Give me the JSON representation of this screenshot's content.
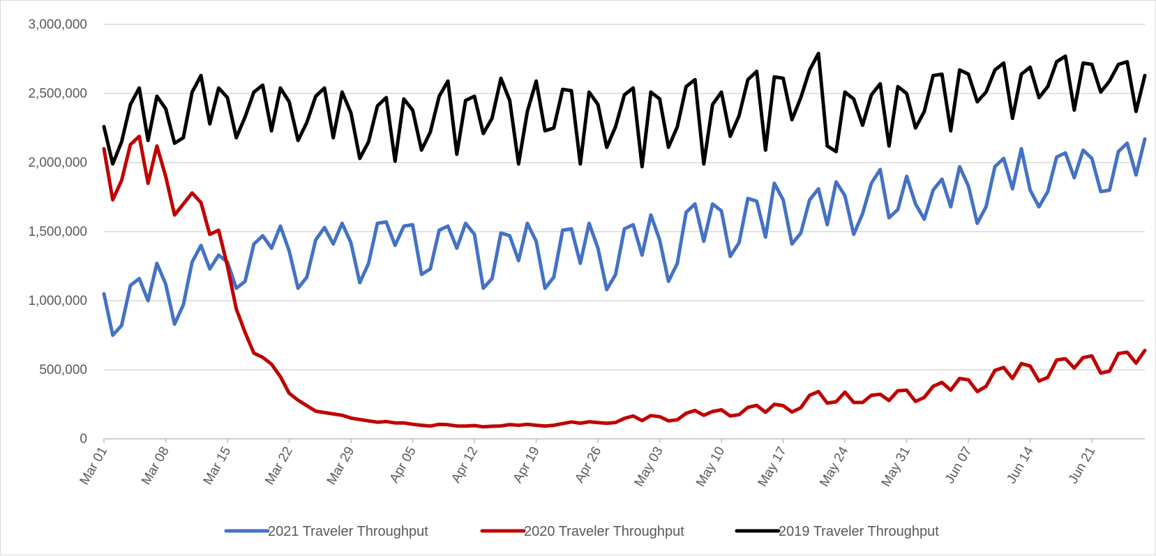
{
  "chart_data": {
    "type": "line",
    "title": "",
    "xlabel": "",
    "ylabel": "",
    "ylim": [
      0,
      3000000
    ],
    "y_ticks": [
      0,
      500000,
      1000000,
      1500000,
      2000000,
      2500000,
      3000000
    ],
    "y_tick_labels": [
      "0",
      "500,000",
      "1,000,000",
      "1,500,000",
      "2,000,000",
      "2,500,000",
      "3,000,000"
    ],
    "x_start": "Mar 01",
    "x_end": "Jun 27",
    "x_tick_labels": [
      "Mar 01",
      "Mar 08",
      "Mar 15",
      "Mar 22",
      "Mar 29",
      "Apr 05",
      "Apr 12",
      "Apr 19",
      "Apr 26",
      "May 03",
      "May 10",
      "May 17",
      "May 24",
      "May 31",
      "Jun 07",
      "Jun 14",
      "Jun 21"
    ],
    "grid": "horizontal",
    "legend_position": "bottom",
    "series": [
      {
        "name": "2021 Traveler Throughput",
        "color": "#4472C4",
        "values": [
          1050000,
          750000,
          820000,
          1110000,
          1160000,
          1000000,
          1270000,
          1120000,
          830000,
          970000,
          1280000,
          1400000,
          1230000,
          1330000,
          1280000,
          1090000,
          1140000,
          1410000,
          1470000,
          1380000,
          1540000,
          1360000,
          1090000,
          1170000,
          1440000,
          1530000,
          1410000,
          1560000,
          1420000,
          1130000,
          1270000,
          1560000,
          1570000,
          1400000,
          1540000,
          1550000,
          1190000,
          1230000,
          1510000,
          1540000,
          1380000,
          1560000,
          1480000,
          1090000,
          1160000,
          1490000,
          1470000,
          1290000,
          1560000,
          1430000,
          1090000,
          1170000,
          1510000,
          1520000,
          1270000,
          1560000,
          1380000,
          1080000,
          1190000,
          1520000,
          1550000,
          1330000,
          1620000,
          1440000,
          1140000,
          1270000,
          1640000,
          1700000,
          1430000,
          1700000,
          1650000,
          1320000,
          1420000,
          1740000,
          1720000,
          1460000,
          1850000,
          1730000,
          1410000,
          1490000,
          1730000,
          1810000,
          1550000,
          1860000,
          1760000,
          1480000,
          1630000,
          1850000,
          1950000,
          1600000,
          1660000,
          1900000,
          1700000,
          1590000,
          1800000,
          1880000,
          1680000,
          1970000,
          1830000,
          1560000,
          1680000,
          1970000,
          2030000,
          1810000,
          2100000,
          1800000,
          1680000,
          1790000,
          2040000,
          2070000,
          1890000,
          2090000,
          2030000,
          1790000,
          1800000,
          2080000,
          2140000,
          1910000,
          2170000
        ]
      },
      {
        "name": "2020 Traveler Throughput",
        "color": "#C00000",
        "values": [
          2100000,
          1730000,
          1870000,
          2130000,
          2190000,
          1850000,
          2120000,
          1900000,
          1620000,
          1700000,
          1780000,
          1710000,
          1480000,
          1510000,
          1250000,
          940000,
          770000,
          620000,
          590000,
          540000,
          450000,
          330000,
          280000,
          240000,
          200000,
          190000,
          180000,
          170000,
          150000,
          140000,
          130000,
          120000,
          125000,
          115000,
          115000,
          105000,
          98000,
          92000,
          105000,
          102000,
          93000,
          92000,
          96000,
          87000,
          91000,
          93000,
          103000,
          98000,
          105000,
          98000,
          92000,
          98000,
          110000,
          122000,
          113000,
          123000,
          117000,
          112000,
          118000,
          148000,
          165000,
          132000,
          168000,
          160000,
          130000,
          138000,
          185000,
          205000,
          170000,
          198000,
          210000,
          165000,
          175000,
          228000,
          242000,
          192000,
          250000,
          240000,
          194000,
          225000,
          315000,
          342000,
          258000,
          268000,
          338000,
          263000,
          263000,
          315000,
          322000,
          277000,
          348000,
          352000,
          270000,
          300000,
          380000,
          408000,
          352000,
          437000,
          427000,
          342000,
          380000,
          495000,
          516000,
          437000,
          545000,
          527000,
          418000,
          445000,
          570000,
          580000,
          512000,
          588000,
          600000,
          476000,
          490000,
          617000,
          627000,
          548000,
          640000
        ]
      },
      {
        "name": "2019 Traveler Throughput",
        "color": "#000000",
        "values": [
          2260000,
          1990000,
          2150000,
          2420000,
          2540000,
          2160000,
          2480000,
          2390000,
          2140000,
          2180000,
          2510000,
          2630000,
          2280000,
          2540000,
          2470000,
          2180000,
          2330000,
          2510000,
          2560000,
          2230000,
          2540000,
          2440000,
          2160000,
          2290000,
          2480000,
          2540000,
          2180000,
          2510000,
          2360000,
          2030000,
          2150000,
          2410000,
          2470000,
          2010000,
          2460000,
          2380000,
          2090000,
          2220000,
          2480000,
          2590000,
          2060000,
          2450000,
          2480000,
          2210000,
          2320000,
          2610000,
          2450000,
          1990000,
          2370000,
          2590000,
          2230000,
          2250000,
          2530000,
          2520000,
          1990000,
          2510000,
          2420000,
          2110000,
          2260000,
          2490000,
          2540000,
          1970000,
          2510000,
          2460000,
          2110000,
          2260000,
          2550000,
          2600000,
          1990000,
          2420000,
          2510000,
          2190000,
          2340000,
          2600000,
          2660000,
          2090000,
          2620000,
          2610000,
          2310000,
          2470000,
          2670000,
          2790000,
          2120000,
          2080000,
          2510000,
          2460000,
          2270000,
          2490000,
          2570000,
          2120000,
          2550000,
          2500000,
          2250000,
          2370000,
          2630000,
          2640000,
          2230000,
          2670000,
          2640000,
          2440000,
          2510000,
          2670000,
          2720000,
          2320000,
          2640000,
          2690000,
          2470000,
          2550000,
          2730000,
          2770000,
          2380000,
          2720000,
          2710000,
          2510000,
          2590000,
          2710000,
          2730000,
          2370000,
          2630000
        ]
      }
    ]
  }
}
